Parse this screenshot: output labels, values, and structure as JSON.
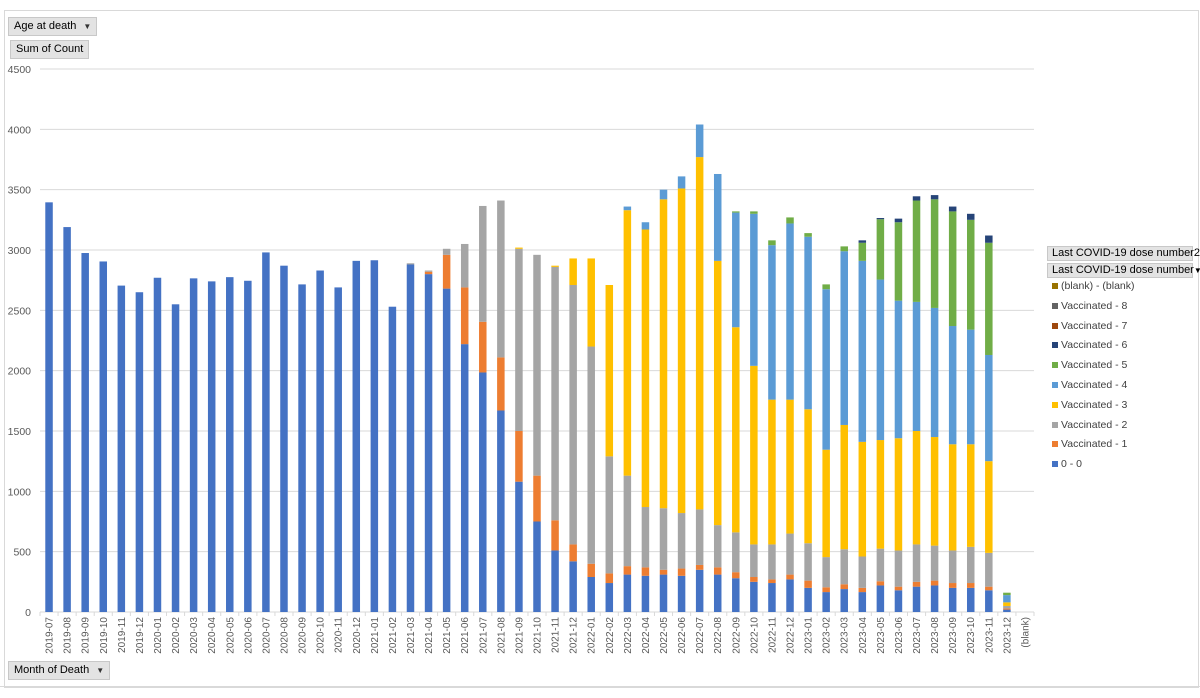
{
  "filters": {
    "age_label": "Age at death",
    "sum_label": "Sum of Count",
    "month_label": "Month of Death",
    "series_field_1": "Last COVID-19 dose number2",
    "series_field_2": "Last COVID-19 dose number",
    "dropdown_icon": "triangle-down-icon"
  },
  "colors": {
    "blank_blank": "#997300",
    "v8": "#636363",
    "v7": "#9e480e",
    "v6": "#264478",
    "v5": "#70ad47",
    "v4": "#5b9bd5",
    "v3": "#ffc000",
    "v2": "#a5a5a5",
    "v1": "#ed7d31",
    "zero": "#4472c4",
    "grid": "#d9d9d9",
    "axis_text": "#595959"
  },
  "chart_data": {
    "type": "bar",
    "stacked": true,
    "ylim": [
      0,
      4500
    ],
    "yticks": [
      "0",
      "500",
      "1000",
      "1500",
      "2000",
      "2500",
      "3000",
      "3500",
      "4000",
      "4500"
    ],
    "legend_position": "right",
    "categories": [
      "2019-07",
      "2019-08",
      "2019-09",
      "2019-10",
      "2019-11",
      "2019-12",
      "2020-01",
      "2020-02",
      "2020-03",
      "2020-04",
      "2020-05",
      "2020-06",
      "2020-07",
      "2020-08",
      "2020-09",
      "2020-10",
      "2020-11",
      "2020-12",
      "2021-01",
      "2021-02",
      "2021-03",
      "2021-04",
      "2021-05",
      "2021-06",
      "2021-07",
      "2021-08",
      "2021-09",
      "2021-10",
      "2021-11",
      "2021-12",
      "2022-01",
      "2022-02",
      "2022-03",
      "2022-04",
      "2022-05",
      "2022-06",
      "2022-07",
      "2022-08",
      "2022-09",
      "2022-10",
      "2022-11",
      "2022-12",
      "2023-01",
      "2023-02",
      "2023-03",
      "2023-04",
      "2023-05",
      "2023-06",
      "2023-07",
      "2023-08",
      "2023-09",
      "2023-10",
      "2023-11",
      "2023-12",
      "(blank)"
    ],
    "series": [
      {
        "name": "0 - 0",
        "key": "zero",
        "values": [
          3395,
          3190,
          2975,
          2905,
          2705,
          2650,
          2770,
          2550,
          2765,
          2740,
          2775,
          2745,
          2980,
          2870,
          2715,
          2830,
          2690,
          2910,
          2915,
          2530,
          2880,
          2800,
          2680,
          2220,
          1985,
          1670,
          1080,
          750,
          510,
          420,
          290,
          240,
          310,
          300,
          310,
          300,
          350,
          310,
          280,
          250,
          240,
          270,
          200,
          165,
          190,
          165,
          220,
          180,
          210,
          220,
          200,
          200,
          180,
          20,
          0
        ]
      },
      {
        "name": "Vaccinated - 1",
        "key": "v1",
        "values": [
          0,
          0,
          0,
          0,
          0,
          0,
          0,
          0,
          0,
          0,
          0,
          0,
          0,
          0,
          0,
          0,
          0,
          0,
          0,
          0,
          0,
          20,
          280,
          470,
          420,
          440,
          420,
          380,
          250,
          140,
          110,
          80,
          70,
          70,
          40,
          60,
          40,
          60,
          50,
          40,
          30,
          40,
          60,
          40,
          40,
          35,
          35,
          30,
          40,
          40,
          40,
          40,
          30,
          10,
          0
        ]
      },
      {
        "name": "Vaccinated - 2",
        "key": "v2",
        "values": [
          0,
          0,
          0,
          0,
          0,
          0,
          0,
          0,
          0,
          0,
          0,
          0,
          0,
          0,
          0,
          0,
          0,
          0,
          0,
          0,
          10,
          10,
          50,
          360,
          960,
          1300,
          1510,
          1830,
          2100,
          2150,
          1800,
          970,
          750,
          500,
          510,
          460,
          460,
          350,
          330,
          270,
          290,
          340,
          310,
          250,
          290,
          260,
          270,
          300,
          310,
          290,
          270,
          300,
          280,
          20,
          0
        ]
      },
      {
        "name": "Vaccinated - 3",
        "key": "v3",
        "values": [
          0,
          0,
          0,
          0,
          0,
          0,
          0,
          0,
          0,
          0,
          0,
          0,
          0,
          0,
          0,
          0,
          0,
          0,
          0,
          0,
          0,
          0,
          0,
          0,
          0,
          0,
          10,
          0,
          10,
          220,
          730,
          1420,
          2200,
          2300,
          2560,
          2690,
          2920,
          2190,
          1700,
          1480,
          1200,
          1110,
          1110,
          890,
          1030,
          950,
          900,
          930,
          940,
          900,
          880,
          850,
          760,
          30,
          0
        ]
      },
      {
        "name": "Vaccinated - 4",
        "key": "v4",
        "values": [
          0,
          0,
          0,
          0,
          0,
          0,
          0,
          0,
          0,
          0,
          0,
          0,
          0,
          0,
          0,
          0,
          0,
          0,
          0,
          0,
          0,
          0,
          0,
          0,
          0,
          0,
          0,
          0,
          0,
          0,
          0,
          0,
          30,
          60,
          80,
          100,
          270,
          720,
          950,
          1260,
          1280,
          1460,
          1430,
          1330,
          1440,
          1500,
          1330,
          1140,
          1070,
          1070,
          980,
          950,
          880,
          60,
          0
        ]
      },
      {
        "name": "Vaccinated - 5",
        "key": "v5",
        "values": [
          0,
          0,
          0,
          0,
          0,
          0,
          0,
          0,
          0,
          0,
          0,
          0,
          0,
          0,
          0,
          0,
          0,
          0,
          0,
          0,
          0,
          0,
          0,
          0,
          0,
          0,
          0,
          0,
          0,
          0,
          0,
          0,
          0,
          0,
          0,
          0,
          0,
          0,
          10,
          20,
          40,
          50,
          30,
          40,
          40,
          150,
          500,
          650,
          840,
          900,
          950,
          910,
          930,
          20,
          0
        ]
      },
      {
        "name": "Vaccinated - 6",
        "key": "v6",
        "values": [
          0,
          0,
          0,
          0,
          0,
          0,
          0,
          0,
          0,
          0,
          0,
          0,
          0,
          0,
          0,
          0,
          0,
          0,
          0,
          0,
          0,
          0,
          0,
          0,
          0,
          0,
          0,
          0,
          0,
          0,
          0,
          0,
          0,
          0,
          0,
          0,
          0,
          0,
          0,
          0,
          0,
          0,
          0,
          0,
          0,
          20,
          10,
          30,
          35,
          35,
          40,
          50,
          60,
          0,
          0
        ]
      },
      {
        "name": "Vaccinated - 7",
        "key": "v7",
        "values": [
          0,
          0,
          0,
          0,
          0,
          0,
          0,
          0,
          0,
          0,
          0,
          0,
          0,
          0,
          0,
          0,
          0,
          0,
          0,
          0,
          0,
          0,
          0,
          0,
          0,
          0,
          0,
          0,
          0,
          0,
          0,
          0,
          0,
          0,
          0,
          0,
          0,
          0,
          0,
          0,
          0,
          0,
          0,
          0,
          0,
          0,
          0,
          0,
          0,
          0,
          0,
          0,
          0,
          0,
          0
        ]
      },
      {
        "name": "Vaccinated - 8",
        "key": "v8",
        "values": [
          0,
          0,
          0,
          0,
          0,
          0,
          0,
          0,
          0,
          0,
          0,
          0,
          0,
          0,
          0,
          0,
          0,
          0,
          0,
          0,
          0,
          0,
          0,
          0,
          0,
          0,
          0,
          0,
          0,
          0,
          0,
          0,
          0,
          0,
          0,
          0,
          0,
          0,
          0,
          0,
          0,
          0,
          0,
          0,
          0,
          0,
          0,
          0,
          0,
          0,
          0,
          0,
          0,
          0,
          0
        ]
      },
      {
        "name": "(blank) - (blank)",
        "key": "blank_blank",
        "values": [
          0,
          0,
          0,
          0,
          0,
          0,
          0,
          0,
          0,
          0,
          0,
          0,
          0,
          0,
          0,
          0,
          0,
          0,
          0,
          0,
          0,
          0,
          0,
          0,
          0,
          0,
          0,
          0,
          0,
          0,
          0,
          0,
          0,
          0,
          0,
          0,
          0,
          0,
          0,
          0,
          0,
          0,
          0,
          0,
          0,
          0,
          0,
          0,
          0,
          0,
          0,
          0,
          0,
          0,
          0
        ]
      }
    ],
    "legend_order": [
      "blank_blank",
      "v8",
      "v7",
      "v6",
      "v5",
      "v4",
      "v3",
      "v2",
      "v1",
      "zero"
    ]
  }
}
